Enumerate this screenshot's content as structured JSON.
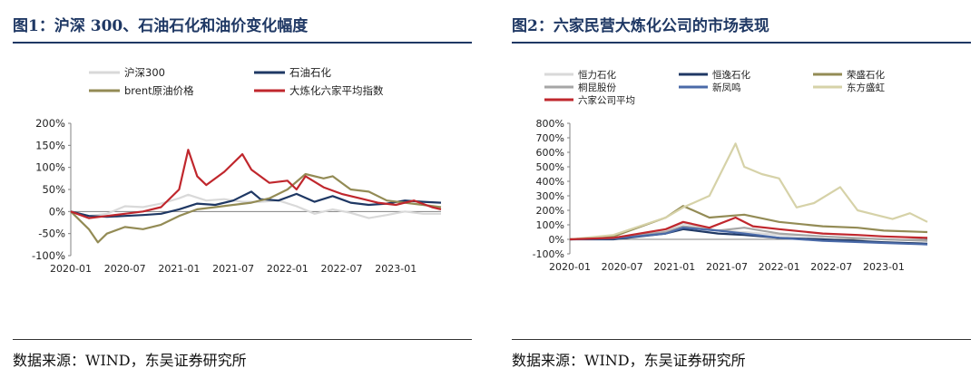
{
  "figures": [
    {
      "title": "图1：沪深 300、石油石化和油价变化幅度",
      "source": "数据来源：WIND，东吴证券研究所",
      "chart_data": {
        "type": "line",
        "title": "",
        "xlabel": "",
        "ylabel": "",
        "x_ticks": [
          "2020-01",
          "2020-07",
          "2021-01",
          "2021-07",
          "2022-01",
          "2022-07",
          "2023-01"
        ],
        "y_ticks": [
          "200%",
          "150%",
          "100%",
          "50%",
          "0%",
          "-50%",
          "-100%"
        ],
        "ylim": [
          -100,
          200
        ],
        "xlim": [
          "2020-01",
          "2023-06"
        ],
        "grid": false,
        "legend_position": "top",
        "series": [
          {
            "name": "沪深300",
            "color": "#d9d9d9",
            "x": [
              "2020-01",
              "2020-03",
              "2020-05",
              "2020-07",
              "2020-09",
              "2020-11",
              "2021-01",
              "2021-02",
              "2021-04",
              "2021-06",
              "2021-08",
              "2021-10",
              "2021-12",
              "2022-02",
              "2022-04",
              "2022-06",
              "2022-08",
              "2022-10",
              "2022-12",
              "2023-02",
              "2023-04",
              "2023-06"
            ],
            "values": [
              0,
              -10,
              -5,
              12,
              10,
              18,
              30,
              38,
              25,
              28,
              22,
              22,
              25,
              12,
              -5,
              5,
              -3,
              -15,
              -8,
              0,
              -5,
              -5
            ]
          },
          {
            "name": "石油石化",
            "color": "#1f3864",
            "x": [
              "2020-01",
              "2020-03",
              "2020-05",
              "2020-07",
              "2020-09",
              "2020-11",
              "2021-01",
              "2021-03",
              "2021-05",
              "2021-07",
              "2021-09",
              "2021-10",
              "2021-12",
              "2022-02",
              "2022-04",
              "2022-06",
              "2022-08",
              "2022-10",
              "2022-12",
              "2023-02",
              "2023-04",
              "2023-06"
            ],
            "values": [
              0,
              -10,
              -12,
              -10,
              -8,
              -5,
              5,
              18,
              15,
              25,
              45,
              28,
              25,
              40,
              22,
              35,
              20,
              15,
              18,
              25,
              22,
              20
            ]
          },
          {
            "name": "brent原油价格",
            "color": "#938b55",
            "x": [
              "2020-01",
              "2020-03",
              "2020-04",
              "2020-05",
              "2020-07",
              "2020-09",
              "2020-11",
              "2021-01",
              "2021-03",
              "2021-05",
              "2021-07",
              "2021-09",
              "2021-11",
              "2022-01",
              "2022-03",
              "2022-05",
              "2022-06",
              "2022-08",
              "2022-10",
              "2022-12",
              "2023-02",
              "2023-04",
              "2023-06"
            ],
            "values": [
              0,
              -40,
              -70,
              -50,
              -35,
              -40,
              -30,
              -10,
              5,
              10,
              15,
              20,
              30,
              50,
              85,
              75,
              80,
              50,
              45,
              25,
              20,
              15,
              10
            ]
          },
          {
            "name": "大炼化六家平均指数",
            "color": "#c0272d",
            "x": [
              "2020-01",
              "2020-03",
              "2020-05",
              "2020-07",
              "2020-09",
              "2020-11",
              "2021-01",
              "2021-02",
              "2021-03",
              "2021-04",
              "2021-06",
              "2021-08",
              "2021-09",
              "2021-11",
              "2022-01",
              "2022-02",
              "2022-03",
              "2022-05",
              "2022-07",
              "2022-09",
              "2022-11",
              "2023-01",
              "2023-03",
              "2023-05",
              "2023-06"
            ],
            "values": [
              0,
              -15,
              -10,
              -5,
              0,
              10,
              50,
              140,
              80,
              60,
              90,
              130,
              95,
              65,
              70,
              50,
              80,
              55,
              40,
              30,
              20,
              15,
              25,
              10,
              5
            ]
          }
        ]
      }
    },
    {
      "title": "图2：六家民营大炼化公司的市场表现",
      "source": "数据来源：WIND，东吴证券研究所",
      "chart_data": {
        "type": "line",
        "title": "",
        "xlabel": "",
        "ylabel": "",
        "x_ticks": [
          "2020-01",
          "2020-07",
          "2021-01",
          "2021-07",
          "2022-01",
          "2022-07",
          "2023-01"
        ],
        "y_ticks": [
          "800%",
          "700%",
          "600%",
          "500%",
          "400%",
          "300%",
          "200%",
          "100%",
          "0%",
          "-100%"
        ],
        "ylim": [
          -100,
          800
        ],
        "xlim": [
          "2020-01",
          "2023-06"
        ],
        "grid": false,
        "legend_position": "top",
        "series": [
          {
            "name": "恒力石化",
            "color": "#d9d9d9",
            "x": [
              "2020-01",
              "2020-06",
              "2020-12",
              "2021-02",
              "2021-06",
              "2021-09",
              "2022-01",
              "2022-06",
              "2023-01",
              "2023-06"
            ],
            "values": [
              0,
              10,
              60,
              110,
              60,
              50,
              30,
              20,
              0,
              -10
            ]
          },
          {
            "name": "恒逸石化",
            "color": "#1f3864",
            "x": [
              "2020-01",
              "2020-06",
              "2020-12",
              "2021-02",
              "2021-06",
              "2021-09",
              "2022-01",
              "2022-06",
              "2023-01",
              "2023-06"
            ],
            "values": [
              0,
              0,
              40,
              70,
              40,
              30,
              10,
              0,
              -20,
              -30
            ]
          },
          {
            "name": "荣盛石化",
            "color": "#938b55",
            "x": [
              "2020-01",
              "2020-06",
              "2020-12",
              "2021-02",
              "2021-05",
              "2021-09",
              "2022-01",
              "2022-06",
              "2022-10",
              "2023-01",
              "2023-06"
            ],
            "values": [
              0,
              20,
              150,
              230,
              150,
              170,
              120,
              90,
              80,
              60,
              50
            ]
          },
          {
            "name": "桐昆股份",
            "color": "#a6a6a6",
            "x": [
              "2020-01",
              "2020-06",
              "2020-12",
              "2021-02",
              "2021-06",
              "2021-09",
              "2022-01",
              "2022-06",
              "2023-01",
              "2023-06"
            ],
            "values": [
              0,
              10,
              50,
              90,
              60,
              80,
              40,
              20,
              0,
              -10
            ]
          },
          {
            "name": "新凤鸣",
            "color": "#4a6aa8",
            "x": [
              "2020-01",
              "2020-06",
              "2020-12",
              "2021-02",
              "2021-06",
              "2021-09",
              "2022-01",
              "2022-06",
              "2023-01",
              "2023-06"
            ],
            "values": [
              0,
              5,
              40,
              80,
              60,
              40,
              10,
              -10,
              -25,
              -35
            ]
          },
          {
            "name": "东方盛虹",
            "color": "#d6d2a8",
            "x": [
              "2020-01",
              "2020-06",
              "2020-12",
              "2021-02",
              "2021-05",
              "2021-08",
              "2021-09",
              "2021-11",
              "2022-01",
              "2022-03",
              "2022-05",
              "2022-08",
              "2022-10",
              "2022-12",
              "2023-02",
              "2023-04",
              "2023-06"
            ],
            "values": [
              0,
              30,
              150,
              220,
              300,
              660,
              500,
              450,
              420,
              220,
              250,
              360,
              200,
              170,
              140,
              180,
              120
            ]
          },
          {
            "name": "六家公司平均",
            "color": "#c0272d",
            "x": [
              "2020-01",
              "2020-06",
              "2020-12",
              "2021-02",
              "2021-05",
              "2021-08",
              "2021-10",
              "2022-01",
              "2022-06",
              "2022-10",
              "2023-01",
              "2023-06"
            ],
            "values": [
              0,
              10,
              70,
              120,
              80,
              150,
              90,
              70,
              40,
              30,
              20,
              10
            ]
          }
        ]
      }
    }
  ]
}
